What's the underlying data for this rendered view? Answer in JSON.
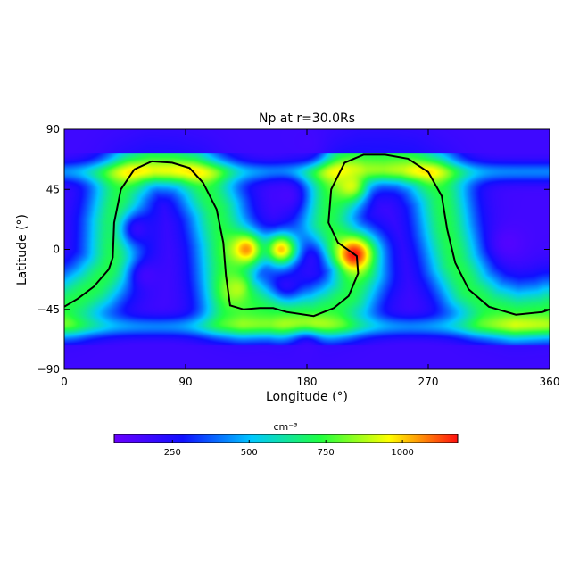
{
  "chart_data": {
    "type": "heatmap",
    "title": "Np at r=30.0Rs",
    "xlabel": "Longitude (°)",
    "ylabel": "Latitude (°)",
    "xlim": [
      0,
      360
    ],
    "ylim": [
      -90,
      90
    ],
    "xticks": [
      "0",
      "90",
      "180",
      "270",
      "360"
    ],
    "yticks": [
      "90",
      "45",
      "0",
      "−45",
      "−90"
    ],
    "colorbar": {
      "unit": "cm⁻³",
      "ticks": [
        "250",
        "500",
        "750",
        "1000"
      ],
      "range": [
        60,
        1180
      ],
      "colormap": [
        "#6a00ff",
        "#1010ff",
        "#00c8ff",
        "#20ff40",
        "#ffff00",
        "#ff1010"
      ]
    },
    "neutral_line": {
      "color": "#000000",
      "points": [
        [
          0,
          -43
        ],
        [
          10,
          -37
        ],
        [
          22,
          -28
        ],
        [
          33,
          -15
        ],
        [
          36,
          -6
        ],
        [
          37,
          20
        ],
        [
          42,
          45
        ],
        [
          52,
          60
        ],
        [
          65,
          66
        ],
        [
          80,
          65
        ],
        [
          93,
          61
        ],
        [
          103,
          50
        ],
        [
          113,
          30
        ],
        [
          118,
          5
        ],
        [
          120,
          -20
        ],
        [
          123,
          -42
        ],
        [
          133,
          -45
        ],
        [
          145,
          -44
        ],
        [
          155,
          -44
        ],
        [
          165,
          -47
        ],
        [
          185,
          -50
        ],
        [
          200,
          -44
        ],
        [
          211,
          -35
        ],
        [
          218,
          -18
        ],
        [
          217,
          -5
        ],
        [
          203,
          5
        ],
        [
          196,
          20
        ],
        [
          198,
          45
        ],
        [
          208,
          65
        ],
        [
          222,
          71
        ],
        [
          238,
          71
        ],
        [
          255,
          68
        ],
        [
          270,
          58
        ],
        [
          280,
          40
        ],
        [
          284,
          15
        ],
        [
          290,
          -10
        ],
        [
          300,
          -30
        ],
        [
          315,
          -43
        ],
        [
          335,
          -49
        ],
        [
          355,
          -47
        ],
        [
          360,
          -45
        ]
      ]
    },
    "density_features": [
      {
        "lon": 55,
        "lat": 15,
        "value": 200
      },
      {
        "lon": 62,
        "lat": -20,
        "value": 160
      },
      {
        "lon": 165,
        "lat": 40,
        "value": 150
      },
      {
        "lon": 180,
        "lat": -8,
        "value": 190
      },
      {
        "lon": 165,
        "lat": -25,
        "value": 210
      },
      {
        "lon": 330,
        "lat": 5,
        "value": 120
      },
      {
        "lon": 180,
        "lat": 80,
        "value": 160
      },
      {
        "lon": 180,
        "lat": -75,
        "value": 170
      },
      {
        "lon": 135,
        "lat": 0,
        "value": 1060
      },
      {
        "lon": 161,
        "lat": 0,
        "value": 1010
      },
      {
        "lon": 215,
        "lat": -4,
        "value": 1180
      },
      {
        "lon": 212,
        "lat": 48,
        "value": 920
      },
      {
        "lon": 128,
        "lat": -30,
        "value": 880
      }
    ]
  }
}
